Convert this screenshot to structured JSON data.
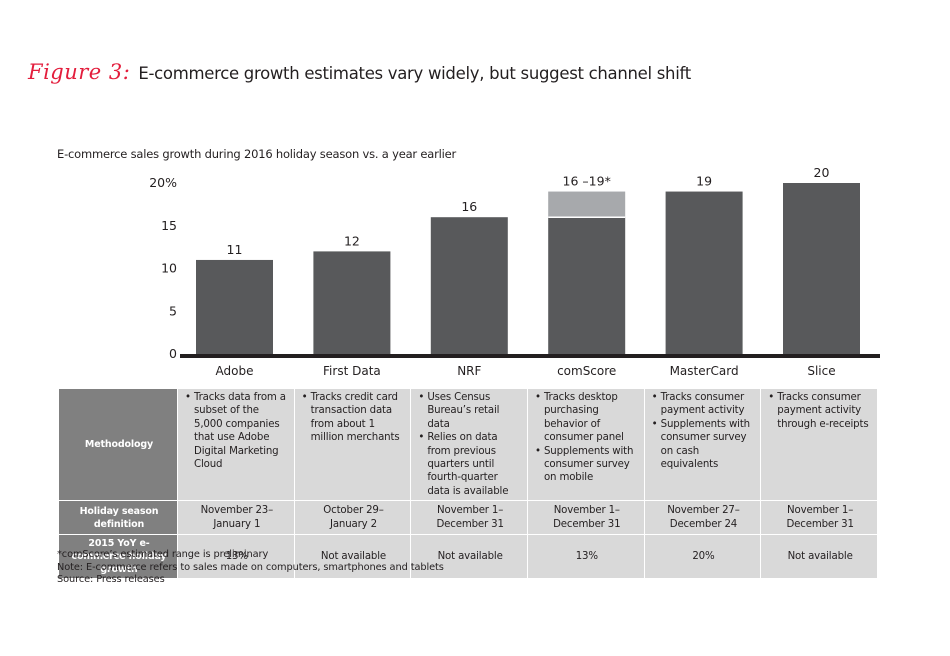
{
  "header": {
    "figure_label": "Figure 3:",
    "title": "E-commerce growth estimates vary widely, but suggest channel shift",
    "accent_color": "#e31d3c"
  },
  "chart_data": {
    "type": "bar",
    "title": "E-commerce growth estimates vary widely, but suggest channel shift",
    "subtitle": "E-commerce sales growth during 2016 holiday season vs. a year earlier",
    "xlabel": "",
    "ylabel": "",
    "ylim": [
      0,
      20
    ],
    "yticks": [
      0,
      5,
      10,
      15,
      20
    ],
    "ytick_labels": [
      "0",
      "5",
      "10",
      "15",
      "20%"
    ],
    "grid": false,
    "categories": [
      "Adobe",
      "First Data",
      "NRF",
      "comScore",
      "MasterCard",
      "Slice"
    ],
    "series": [
      {
        "name": "Growth estimate",
        "color": "#58595b",
        "values": [
          11,
          12,
          16,
          16,
          19,
          20
        ]
      },
      {
        "name": "Estimated range (upper)",
        "color": "#a7a9ac",
        "values": [
          0,
          0,
          0,
          3,
          0,
          0
        ]
      }
    ],
    "data_labels": [
      "11",
      "12",
      "16",
      "16 –19*",
      "19",
      "20"
    ]
  },
  "table": {
    "row_headers": [
      "Methodology",
      "Holiday season definition",
      "2015 YoY e-commerce holiday growth"
    ],
    "methodology": [
      [
        "Tracks data from a subset of the 5,000 companies that use Adobe Digital Marketing Cloud"
      ],
      [
        "Tracks credit card transaction data from about 1 million merchants"
      ],
      [
        "Uses Census Bureau’s retail data",
        "Relies on data from previous quarters until fourth-quarter data is available"
      ],
      [
        "Tracks desktop purchasing behavior of consumer panel",
        "Supplements with consumer survey on mobile"
      ],
      [
        "Tracks consumer payment activity",
        "Supplements with consumer survey on cash equivalents"
      ],
      [
        "Tracks consumer payment activity through e-receipts"
      ]
    ],
    "holiday_season": [
      [
        "November 23–",
        "January 1"
      ],
      [
        "October 29–",
        "January 2"
      ],
      [
        "November 1–",
        "December 31"
      ],
      [
        "November 1–",
        "December 31"
      ],
      [
        "November 27–",
        "December 24"
      ],
      [
        "November 1–",
        "December 31"
      ]
    ],
    "growth_2015": [
      "13%",
      "Not available",
      "Not available",
      "13%",
      "20%",
      "Not available"
    ]
  },
  "notes": {
    "footnote": "*comScore’s estimated range is preliminary",
    "note": "Note: E-commerce refers to sales made on computers, smartphones and tablets",
    "source": "Source: Press releases"
  }
}
